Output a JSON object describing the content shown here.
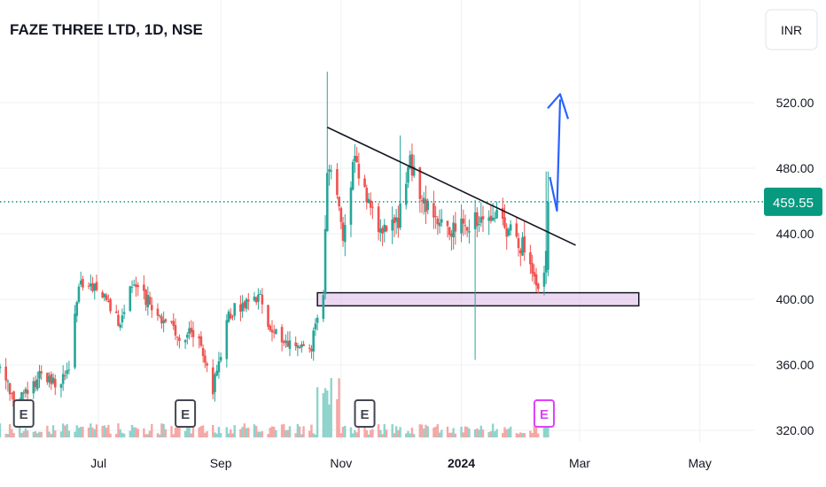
{
  "header": {
    "title": "FAZE THREE LTD, 1D, NSE",
    "currency": "INR"
  },
  "colors": {
    "up": "#26a69a",
    "down": "#ef5350",
    "upVol": "#8fd3cc",
    "downVol": "#f4a8a6",
    "grid": "#eef0f3",
    "last": "#089981",
    "zone": "#e1bee7",
    "arrow": "#2962ff",
    "earningsPast": "#434651",
    "earningsNext": "#e040fb"
  },
  "chart_data": {
    "type": "candlestick",
    "title": "FAZE THREE LTD, 1D, NSE",
    "x_ticks": [
      {
        "label": "Jul",
        "date": "2023-07-01"
      },
      {
        "label": "Sep",
        "date": "2023-09-01"
      },
      {
        "label": "Nov",
        "date": "2023-11-01"
      },
      {
        "label": "2024",
        "date": "2024-01-01",
        "bold": true
      },
      {
        "label": "Mar",
        "date": "2024-03-01"
      },
      {
        "label": "May",
        "date": "2024-05-01"
      }
    ],
    "y_ticks": [
      320,
      360,
      400,
      440,
      480,
      520
    ],
    "y_tick_labels": [
      "320.00",
      "360.00",
      "400.00",
      "440.00",
      "480.00",
      "520.00"
    ],
    "ylim": [
      316,
      551
    ],
    "x_range": [
      "2023-05-12",
      "2024-05-29"
    ],
    "last_price": 459.55,
    "last_price_label": "459.55",
    "anchors": [
      [
        "2023-05-12",
        358
      ],
      [
        "2023-05-19",
        337
      ],
      [
        "2023-05-26",
        343
      ],
      [
        "2023-06-02",
        355
      ],
      [
        "2023-06-09",
        348
      ],
      [
        "2023-06-16",
        358
      ],
      [
        "2023-06-21",
        410
      ],
      [
        "2023-06-26",
        411
      ],
      [
        "2023-07-05",
        400
      ],
      [
        "2023-07-12",
        386
      ],
      [
        "2023-07-18",
        410
      ],
      [
        "2023-07-24",
        402
      ],
      [
        "2023-08-02",
        388
      ],
      [
        "2023-08-11",
        378
      ],
      [
        "2023-08-21",
        379
      ],
      [
        "2023-08-28",
        345
      ],
      [
        "2023-09-05",
        392
      ],
      [
        "2023-09-13",
        396
      ],
      [
        "2023-09-21",
        400
      ],
      [
        "2023-09-26",
        384
      ],
      [
        "2023-10-04",
        373
      ],
      [
        "2023-10-10",
        372
      ],
      [
        "2023-10-17",
        371
      ],
      [
        "2023-10-19",
        388
      ],
      [
        "2023-10-23",
        400
      ],
      [
        "2023-10-25",
        478
      ],
      [
        "2023-10-30",
        470
      ],
      [
        "2023-11-02",
        438
      ],
      [
        "2023-11-06",
        472
      ],
      [
        "2023-11-08",
        488
      ],
      [
        "2023-11-14",
        462
      ],
      [
        "2023-11-22",
        440
      ],
      [
        "2023-11-30",
        447
      ],
      [
        "2023-12-06",
        483
      ],
      [
        "2023-12-14",
        457
      ],
      [
        "2023-12-20",
        449
      ],
      [
        "2023-12-27",
        444
      ],
      [
        "2024-01-05",
        443
      ],
      [
        "2024-01-12",
        452
      ],
      [
        "2024-01-19",
        450
      ],
      [
        "2024-01-26",
        440
      ],
      [
        "2024-02-02",
        432
      ],
      [
        "2024-02-06",
        416
      ],
      [
        "2024-02-09",
        406
      ],
      [
        "2024-02-12",
        416
      ],
      [
        "2024-02-13",
        432
      ],
      [
        "2024-02-14",
        459.55
      ]
    ],
    "events": [
      {
        "date": "2023-10-25",
        "high": 539
      },
      {
        "date": "2024-01-08",
        "low": 363
      },
      {
        "date": "2023-12-01",
        "high": 500
      },
      {
        "date": "2024-02-13",
        "high": 478
      }
    ],
    "trendline": {
      "start": [
        "2023-10-25",
        505
      ],
      "end": [
        "2024-02-28",
        433
      ]
    },
    "support_zone": {
      "start": "2023-10-20",
      "end": "2024-03-31",
      "low": 396,
      "high": 404
    },
    "projection_arrow": {
      "start": [
        "2024-02-14",
        453
      ],
      "end": [
        "2024-02-21",
        522
      ]
    },
    "earnings": [
      {
        "label": "E",
        "date": "2023-05-24",
        "upcoming": false
      },
      {
        "label": "E",
        "date": "2023-08-14",
        "upcoming": false
      },
      {
        "label": "E",
        "date": "2023-11-13",
        "upcoming": false
      },
      {
        "label": "E",
        "date": "2024-02-12",
        "upcoming": true
      }
    ]
  }
}
